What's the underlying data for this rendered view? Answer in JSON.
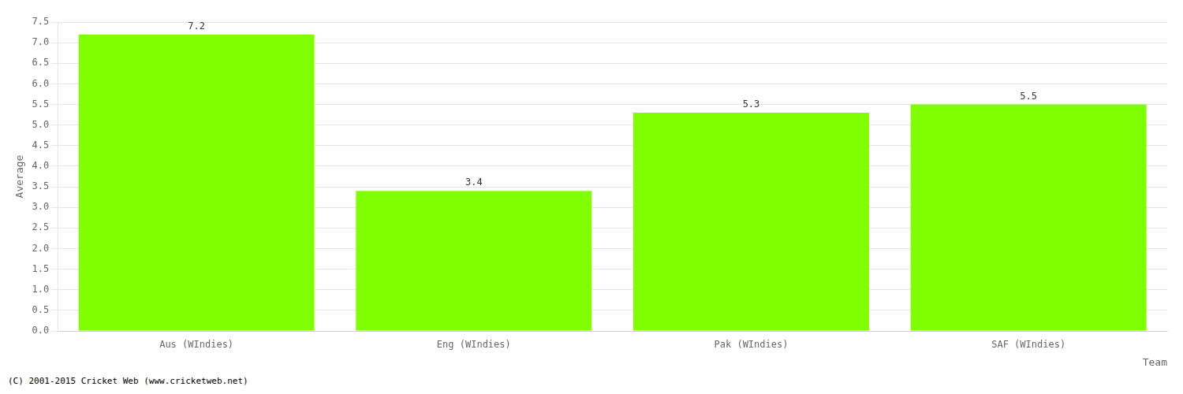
{
  "chart_data": {
    "type": "bar",
    "categories": [
      "Aus (WIndies)",
      "Eng (WIndies)",
      "Pak (WIndies)",
      "SAF (WIndies)"
    ],
    "values": [
      7.2,
      3.4,
      5.3,
      5.5
    ],
    "color": "#7fff00",
    "xlabel": "Team",
    "ylabel": "Average",
    "ylim": [
      0.0,
      7.5
    ],
    "yticks": [
      {
        "value": 0,
        "label": "0.0"
      },
      0.5,
      {
        "value": 1,
        "label": "1.0"
      },
      1.5,
      {
        "value": 2,
        "label": "2.0"
      },
      2.5,
      {
        "value": 3,
        "label": "3.0"
      },
      3.5,
      {
        "value": 4,
        "label": "4.0"
      },
      4.5,
      {
        "value": 5,
        "label": "5.0"
      },
      5.5,
      {
        "value": 6,
        "label": "6.0"
      },
      6.5,
      {
        "value": 7,
        "label": "7.0"
      },
      7.5
    ],
    "grid": true,
    "data_labels": true,
    "annotations": [
      "(C) 2001-2015 Cricket Web (www.cricketweb.net)"
    ]
  }
}
